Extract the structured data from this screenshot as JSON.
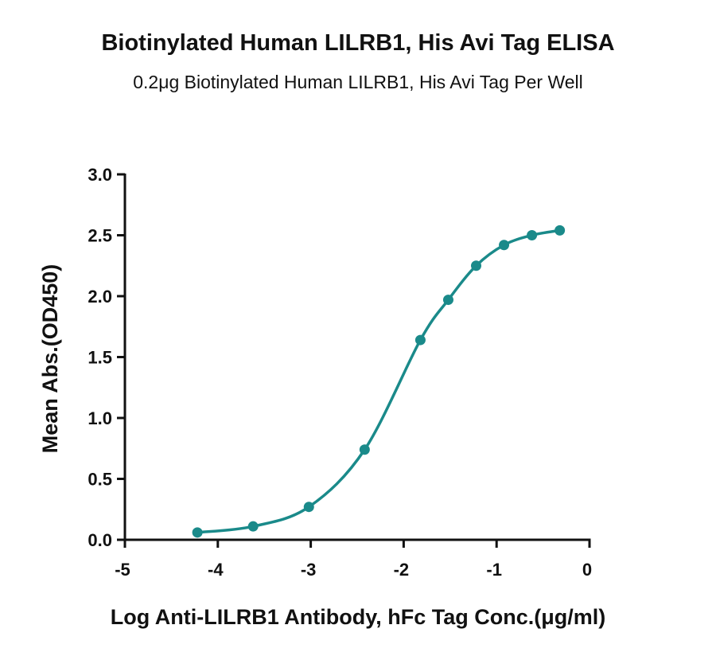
{
  "chart_data": {
    "type": "line",
    "title": "Biotinylated Human LILRB1, His Avi Tag ELISA",
    "subtitle": "0.2μg Biotinylated Human LILRB1, His Avi Tag Per Well",
    "xlabel": "Log Anti-LILRB1 Antibody, hFc Tag Conc.(μg/ml)",
    "ylabel": "Mean Abs.(OD450)",
    "xlim": [
      -5,
      0
    ],
    "ylim": [
      0,
      3
    ],
    "x_ticks": [
      "-5",
      "-4",
      "-3",
      "-2",
      "-1",
      "0"
    ],
    "y_ticks": [
      "0.0",
      "0.5",
      "1.0",
      "1.5",
      "2.0",
      "2.5",
      "3.0"
    ],
    "grid": false,
    "color": "#1a8a8a",
    "series": [
      {
        "x": [
          -4.22,
          -3.62,
          -3.02,
          -2.42,
          -1.82,
          -1.52,
          -1.22,
          -0.92,
          -0.62,
          -0.32
        ],
        "y": [
          0.06,
          0.11,
          0.27,
          0.74,
          1.64,
          1.97,
          2.25,
          2.42,
          2.5,
          2.54
        ]
      }
    ]
  }
}
